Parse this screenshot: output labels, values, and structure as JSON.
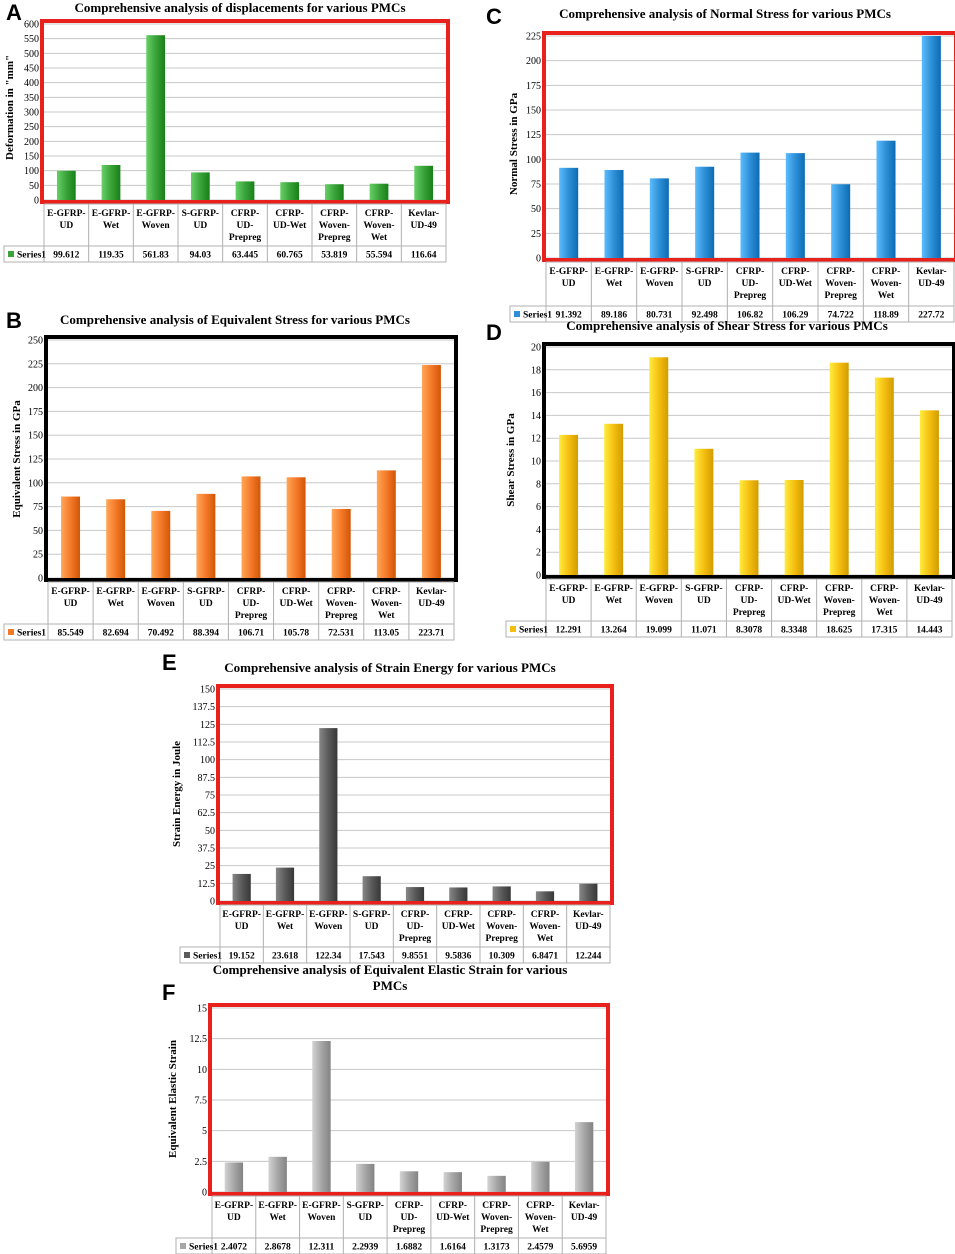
{
  "categories": [
    "E-GFRP-UD",
    "E-GFRP-Wet",
    "E-GFRP-Woven",
    "S-GFRP-UD",
    "CFRP-UD-Prepreg",
    "CFRP-UD-Wet",
    "CFRP-Woven-Prepreg",
    "CFRP-Woven-Wet",
    "Kevlar-UD-49"
  ],
  "category_lines": [
    [
      "E-GFRP-",
      "UD"
    ],
    [
      "E-GFRP-",
      "Wet"
    ],
    [
      "E-GFRP-",
      "Woven"
    ],
    [
      "S-GFRP-",
      "UD"
    ],
    [
      "CFRP-",
      "UD-",
      "Prepreg"
    ],
    [
      "CFRP-",
      "UD-Wet"
    ],
    [
      "CFRP-",
      "Woven-",
      "Prepreg"
    ],
    [
      "CFRP-",
      "Woven-",
      "Wet"
    ],
    [
      "Kevlar-",
      "UD-49"
    ]
  ],
  "chart_data": [
    {
      "panel": "A",
      "type": "bar",
      "title": "Comprehensive analysis of displacements for various PMCs",
      "ylabel": "Deformation in \"mm\"",
      "series_name": "Series1",
      "values": [
        99.612,
        119.35,
        561.83,
        94.03,
        63.445,
        60.765,
        53.819,
        55.594,
        116.64
      ],
      "value_labels": [
        "99.612",
        "119.35",
        "561.83",
        "94.03",
        "63.445",
        "60.765",
        "53.819",
        "55.594",
        "116.64"
      ],
      "ylim": [
        0,
        600
      ],
      "ticks": [
        "0",
        "50",
        "100",
        "150",
        "200",
        "250",
        "300",
        "350",
        "400",
        "450",
        "500",
        "550",
        "600"
      ],
      "bar_color": "#3aa33a",
      "frame_color": "#e8211d",
      "grid": true,
      "legend": "data-table"
    },
    {
      "panel": "C",
      "type": "bar",
      "title": "Comprehensive analysis of Normal Stress for various PMCs",
      "ylabel": "Normal Stress in GPa",
      "series_name": "Series1",
      "values": [
        91.392,
        89.186,
        80.731,
        92.498,
        106.82,
        106.29,
        74.722,
        118.89,
        227.72
      ],
      "value_labels": [
        "91.392",
        "89.186",
        "80.731",
        "92.498",
        "106.82",
        "106.29",
        "74.722",
        "118.89",
        "227.72"
      ],
      "ylim": [
        0,
        225
      ],
      "ticks": [
        "0",
        "25",
        "50",
        "75",
        "100",
        "125",
        "150",
        "175",
        "200",
        "225"
      ],
      "bar_color": "#2e8fd6",
      "frame_color": "#e8211d",
      "grid": true,
      "legend": "data-table"
    },
    {
      "panel": "B",
      "type": "bar",
      "title": "Comprehensive analysis of Equivalent Stress for various PMCs",
      "ylabel": "Equivalent Stress in GPa",
      "series_name": "Series1",
      "values": [
        85.549,
        82.694,
        70.492,
        88.394,
        106.71,
        105.78,
        72.531,
        113.05,
        223.71
      ],
      "value_labels": [
        "85.549",
        "82.694",
        "70.492",
        "88.394",
        "106.71",
        "105.78",
        "72.531",
        "113.05",
        "223.71"
      ],
      "ylim": [
        0,
        250
      ],
      "ticks": [
        "0",
        "25",
        "50",
        "75",
        "100",
        "125",
        "150",
        "175",
        "200",
        "225",
        "250"
      ],
      "bar_color": "#f47a2a",
      "frame_color": "#000000",
      "grid": true,
      "legend": "data-table"
    },
    {
      "panel": "D",
      "type": "bar",
      "title": "Comprehensive analysis of Shear Stress for various PMCs",
      "ylabel": "Shear Stress in GPa",
      "series_name": "Series1",
      "values": [
        12.291,
        13.264,
        19.099,
        11.071,
        8.3078,
        8.3348,
        18.625,
        17.315,
        14.443
      ],
      "value_labels": [
        "12.291",
        "13.264",
        "19.099",
        "11.071",
        "8.3078",
        "8.3348",
        "18.625",
        "17.315",
        "14.443"
      ],
      "ylim": [
        0,
        20
      ],
      "ticks": [
        "0",
        "2",
        "4",
        "6",
        "8",
        "10",
        "12",
        "14",
        "16",
        "18",
        "20"
      ],
      "bar_color": "#f5bf11",
      "frame_color": "#000000",
      "grid": true,
      "legend": "data-table"
    },
    {
      "panel": "E",
      "type": "bar",
      "title": "Comprehensive analysis of Strain Energy for various PMCs",
      "ylabel": "Strain Energy in Joule",
      "series_name": "Series1",
      "values": [
        19.152,
        23.618,
        122.34,
        17.543,
        9.8551,
        9.5836,
        10.309,
        6.8471,
        12.244
      ],
      "value_labels": [
        "19.152",
        "23.618",
        "122.34",
        "17.543",
        "9.8551",
        "9.5836",
        "10.309",
        "6.8471",
        "12.244"
      ],
      "ylim": [
        0,
        150
      ],
      "ticks": [
        "0",
        "12.5",
        "25",
        "37.5",
        "50",
        "62.5",
        "75",
        "87.5",
        "100",
        "112.5",
        "125",
        "137.5",
        "150"
      ],
      "bar_color": "#5a5a5a",
      "frame_color": "#e8211d",
      "grid": true,
      "legend": "data-table"
    },
    {
      "panel": "F",
      "type": "bar",
      "title": "Comprehensive analysis of Equivalent Elastic Strain for various PMCs",
      "title_lines": [
        "Comprehensive analysis of Equivalent Elastic Strain for various",
        "PMCs"
      ],
      "ylabel": "Equivalent Elastic Strain",
      "series_name": "Series1",
      "values": [
        2.4072,
        2.8678,
        12.311,
        2.2939,
        1.6882,
        1.6164,
        1.3173,
        2.4579,
        5.6959
      ],
      "value_labels": [
        "2.4072",
        "2.8678",
        "12.311",
        "2.2939",
        "1.6882",
        "1.6164",
        "1.3173",
        "2.4579",
        "5.6959"
      ],
      "ylim": [
        0,
        15
      ],
      "ticks": [
        "0",
        "2.5",
        "5",
        "7.5",
        "10",
        "12.5",
        "15"
      ],
      "bar_color": "#a6a6a6",
      "frame_color": "#e8211d",
      "grid": true,
      "legend": "data-table"
    }
  ]
}
